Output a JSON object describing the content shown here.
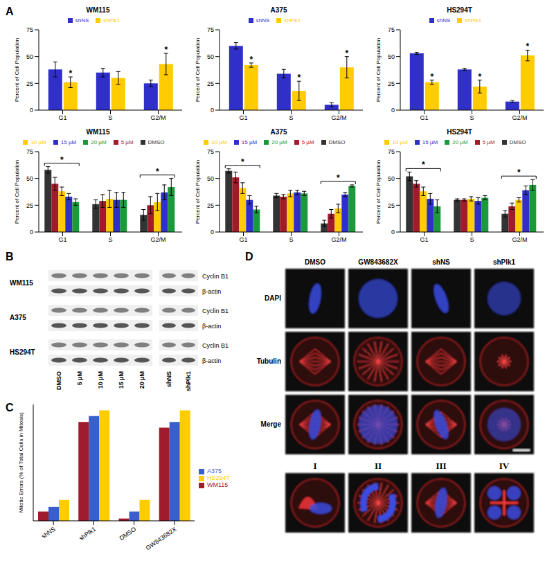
{
  "panel_labels": [
    "A",
    "B",
    "C",
    "D"
  ],
  "chart_data": [
    {
      "type": "bar",
      "title": "WM115",
      "categories": [
        "G1",
        "S",
        "G2/M"
      ],
      "ylabel": "Percent of Cell Population",
      "ylim": [
        0,
        75
      ],
      "yticks": [
        0,
        25,
        50,
        75
      ],
      "legend": "top",
      "series": [
        {
          "name": "shNS",
          "color": "#3030c8",
          "values": [
            38,
            35,
            25
          ],
          "errors": [
            7,
            4,
            3
          ]
        },
        {
          "name": "shPlk1",
          "color": "#ffcc00",
          "values": [
            26,
            30,
            43
          ],
          "errors": [
            5,
            6,
            10
          ]
        }
      ],
      "annotations": [
        {
          "category": "G1",
          "series": "shPlk1",
          "text": "*"
        },
        {
          "category": "G2/M",
          "series": "shPlk1",
          "text": "*"
        }
      ]
    },
    {
      "type": "bar",
      "title": "A375",
      "categories": [
        "G1",
        "S",
        "G2/M"
      ],
      "ylabel": "Percent of Cell Population",
      "ylim": [
        0,
        75
      ],
      "yticks": [
        0,
        25,
        50,
        75
      ],
      "legend": "top",
      "series": [
        {
          "name": "shNS",
          "color": "#3030c8",
          "values": [
            60,
            34,
            5
          ],
          "errors": [
            3,
            4,
            2
          ]
        },
        {
          "name": "shPlk1",
          "color": "#ffcc00",
          "values": [
            42,
            18,
            40
          ],
          "errors": [
            2,
            9,
            10
          ]
        }
      ],
      "annotations": [
        {
          "category": "G1",
          "series": "shPlk1",
          "text": "*"
        },
        {
          "category": "S",
          "series": "shPlk1",
          "text": "*"
        },
        {
          "category": "G2/M",
          "series": "shPlk1",
          "text": "*"
        }
      ]
    },
    {
      "type": "bar",
      "title": "HS294T",
      "categories": [
        "G1",
        "S",
        "G2/M"
      ],
      "ylabel": "Percent of Cell Population",
      "ylim": [
        0,
        75
      ],
      "yticks": [
        0,
        25,
        50,
        75
      ],
      "legend": "top",
      "series": [
        {
          "name": "shNS",
          "color": "#3030c8",
          "values": [
            53,
            38,
            8
          ],
          "errors": [
            1,
            1,
            1
          ]
        },
        {
          "name": "shPlk1",
          "color": "#ffcc00",
          "values": [
            26,
            22,
            51
          ],
          "errors": [
            2,
            6,
            5
          ]
        }
      ],
      "annotations": [
        {
          "category": "G1",
          "series": "shPlk1",
          "text": "*"
        },
        {
          "category": "S",
          "series": "shPlk1",
          "text": "*"
        },
        {
          "category": "G2/M",
          "series": "shPlk1",
          "text": "*"
        }
      ]
    },
    {
      "type": "bar",
      "title": "WM115",
      "categories": [
        "G1",
        "S",
        "G2/M"
      ],
      "ylabel": "Percent of Cell Population",
      "ylim": [
        0,
        75
      ],
      "yticks": [
        0,
        25,
        50,
        75
      ],
      "legend": "top",
      "series": [
        {
          "name": "DMSO",
          "color": "#333333",
          "values": [
            58,
            26,
            16
          ],
          "errors": [
            3,
            4,
            5
          ]
        },
        {
          "name": "5 µM",
          "color": "#a01c2c",
          "values": [
            45,
            29,
            25
          ],
          "errors": [
            6,
            6,
            8
          ]
        },
        {
          "name": "10 µM",
          "color": "#ffcc00",
          "values": [
            38,
            31,
            28
          ],
          "errors": [
            4,
            8,
            8
          ]
        },
        {
          "name": "15 µM",
          "color": "#3030c8",
          "values": [
            33,
            30,
            37
          ],
          "errors": [
            3,
            7,
            7
          ]
        },
        {
          "name": "20 µM",
          "color": "#1a9a3a",
          "values": [
            28,
            30,
            42
          ],
          "errors": [
            3,
            7,
            8
          ]
        }
      ],
      "annotations": [
        {
          "category": "G1",
          "text": "*"
        },
        {
          "category": "G2/M",
          "text": "*"
        }
      ]
    },
    {
      "type": "bar",
      "title": "A375",
      "categories": [
        "G1",
        "S",
        "G2/M"
      ],
      "ylabel": "Percent of Cell Population",
      "ylim": [
        0,
        75
      ],
      "yticks": [
        0,
        25,
        50,
        75
      ],
      "legend": "top",
      "series": [
        {
          "name": "DMSO",
          "color": "#333333",
          "values": [
            57,
            34,
            8
          ],
          "errors": [
            2,
            2,
            3
          ]
        },
        {
          "name": "5 µM",
          "color": "#a01c2c",
          "values": [
            51,
            33,
            17
          ],
          "errors": [
            5,
            2,
            4
          ]
        },
        {
          "name": "10 µM",
          "color": "#ffcc00",
          "values": [
            41,
            36,
            22
          ],
          "errors": [
            5,
            3,
            4
          ]
        },
        {
          "name": "15 µM",
          "color": "#3030c8",
          "values": [
            30,
            37,
            35
          ],
          "errors": [
            4,
            2,
            2
          ]
        },
        {
          "name": "20 µM",
          "color": "#1a9a3a",
          "values": [
            21,
            36,
            43
          ],
          "errors": [
            3,
            2,
            1
          ]
        }
      ],
      "annotations": [
        {
          "category": "G1",
          "text": "*"
        },
        {
          "category": "G2/M",
          "text": "*"
        }
      ]
    },
    {
      "type": "bar",
      "title": "HS294T",
      "categories": [
        "G1",
        "S",
        "G2/M"
      ],
      "ylabel": "Percent of Cell Population",
      "ylim": [
        0,
        75
      ],
      "yticks": [
        0,
        25,
        50,
        75
      ],
      "legend": "top",
      "series": [
        {
          "name": "DMSO",
          "color": "#333333",
          "values": [
            52,
            30,
            17
          ],
          "errors": [
            4,
            1,
            3
          ]
        },
        {
          "name": "5 µM",
          "color": "#a01c2c",
          "values": [
            45,
            30,
            24
          ],
          "errors": [
            3,
            1,
            3
          ]
        },
        {
          "name": "10 µM",
          "color": "#ffcc00",
          "values": [
            38,
            31,
            30
          ],
          "errors": [
            4,
            2,
            2
          ]
        },
        {
          "name": "15 µM",
          "color": "#3030c8",
          "values": [
            31,
            29,
            39
          ],
          "errors": [
            5,
            3,
            4
          ]
        },
        {
          "name": "20 µM",
          "color": "#1a9a3a",
          "values": [
            24,
            32,
            44
          ],
          "errors": [
            6,
            2,
            5
          ]
        }
      ],
      "annotations": [
        {
          "category": "G1",
          "text": "*"
        },
        {
          "category": "G2/M",
          "text": "*"
        }
      ]
    },
    {
      "type": "bar",
      "categories": [
        "shNS",
        "shPlk1",
        "DMSO",
        "GW843682X"
      ],
      "ylabel": "Mitotic Errors (% of Total Cells in Mitosis)",
      "ylim": [
        0,
        100
      ],
      "tick_labels": "x",
      "legend": "right",
      "series": [
        {
          "name": "WM115",
          "color": "#a01c2c",
          "values": [
            8,
            85,
            2,
            80
          ]
        },
        {
          "name": "A375",
          "color": "#3a5fcd",
          "values": [
            12,
            90,
            8,
            85
          ]
        },
        {
          "name": "HS294T",
          "color": "#ffcc00",
          "values": [
            18,
            95,
            18,
            95
          ]
        }
      ]
    }
  ],
  "blot": {
    "cell_lines": [
      "WM115",
      "A375",
      "HS294T"
    ],
    "bands": [
      "Cyclin B1",
      "β-actin"
    ],
    "lanes_left": [
      "DMSO",
      "5 µM",
      "10 µM",
      "15 µM",
      "20 µM"
    ],
    "lanes_right": [
      "shNS",
      "shPlk1"
    ]
  },
  "microscopy": {
    "columns": [
      "DMSO",
      "GW843682X",
      "shNS",
      "shPlk1"
    ],
    "rows": [
      "DAPI",
      "Tubulin",
      "Merge"
    ],
    "examples": [
      "I",
      "II",
      "III",
      "IV"
    ]
  }
}
